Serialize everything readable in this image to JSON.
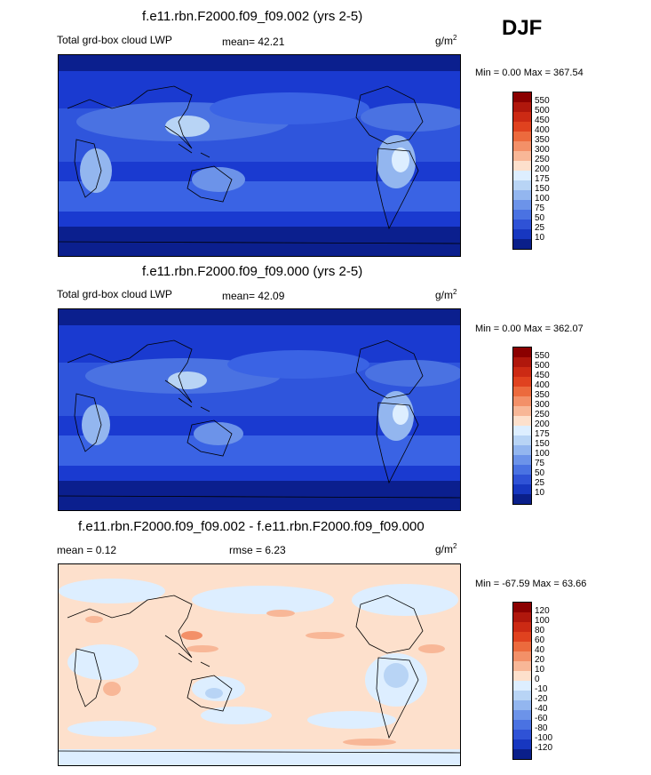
{
  "season": "DJF",
  "panels": [
    {
      "title": "f.e11.rbn.F2000.f09_f09.002 (yrs 2-5)",
      "left_label": "Total grd-box cloud LWP",
      "center_label": "mean=  42.21",
      "units_base": "g/m",
      "units_exp": "2",
      "minmax": "Min =   0.00 Max = 367.54",
      "kind": "abs"
    },
    {
      "title": "f.e11.rbn.F2000.f09_f09.000 (yrs 2-5)",
      "left_label": "Total grd-box cloud LWP",
      "center_label": "mean=  42.09",
      "units_base": "g/m",
      "units_exp": "2",
      "minmax": "Min =   0.00 Max = 362.07",
      "kind": "abs"
    },
    {
      "title": "f.e11.rbn.F2000.f09_f09.002 - f.e11.rbn.F2000.f09_f09.000",
      "left_label": "mean =   0.12",
      "center_label": "rmse =   6.23",
      "units_base": "g/m",
      "units_exp": "2",
      "minmax": "Min = -67.59 Max =  63.66",
      "kind": "diff"
    }
  ],
  "colorbar_abs": {
    "levels": [
      "550",
      "500",
      "450",
      "400",
      "350",
      "300",
      "250",
      "200",
      "175",
      "150",
      "100",
      "75",
      "50",
      "25",
      "10"
    ],
    "colors": [
      "#8b0000",
      "#b0170c",
      "#cc2a14",
      "#e0421f",
      "#ec6a3d",
      "#f39068",
      "#f8b797",
      "#fde0cc",
      "#ddeeff",
      "#b8d4f5",
      "#93b6ef",
      "#6c93e9",
      "#4a72e2",
      "#2f52d6",
      "#1737c0",
      "#0a1f8a"
    ]
  },
  "colorbar_diff": {
    "levels": [
      "120",
      "100",
      "80",
      "60",
      "40",
      "20",
      "10",
      "0",
      "-10",
      "-20",
      "-40",
      "-60",
      "-80",
      "-100",
      "-120"
    ],
    "colors": [
      "#8b0000",
      "#b0170c",
      "#cc2a14",
      "#e0421f",
      "#ec6a3d",
      "#f39068",
      "#f8b797",
      "#fde0cc",
      "#ddeeff",
      "#b8d4f5",
      "#93b6ef",
      "#6c93e9",
      "#4a72e2",
      "#2f52d6",
      "#1737c0",
      "#0a1f8a"
    ]
  }
}
